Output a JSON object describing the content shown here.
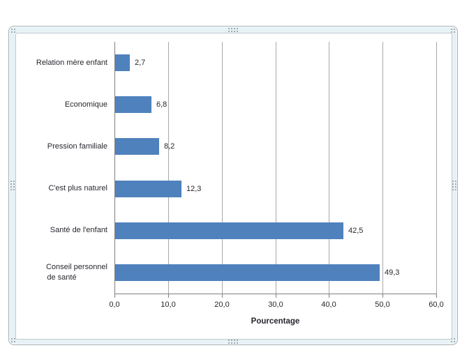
{
  "chart_data": {
    "type": "bar",
    "orientation": "horizontal",
    "title": "",
    "categories": [
      "Relation mère enfant",
      "Economique",
      "Pression familiale",
      "C'est plus naturel",
      "Santé de l'enfant",
      "Conseil personnel de santé"
    ],
    "categories_lines": [
      [
        "Relation mère enfant"
      ],
      [
        "Economique"
      ],
      [
        "Pression familiale"
      ],
      [
        "C'est plus naturel"
      ],
      [
        "Santé de l'enfant"
      ],
      [
        "Conseil personnel",
        "de santé"
      ]
    ],
    "values": [
      2.7,
      6.8,
      8.2,
      12.3,
      42.5,
      49.3
    ],
    "data_labels": [
      "2,7",
      "6,8",
      "8,2",
      "12,3",
      "42,5",
      "49,3"
    ],
    "xlabel": "Pourcentage",
    "ylabel": "",
    "xlim": [
      0,
      60
    ],
    "xticks": [
      0,
      10,
      20,
      30,
      40,
      50,
      60
    ],
    "xtick_labels": [
      "0,0",
      "10,0",
      "20,0",
      "30,0",
      "40,0",
      "50,0",
      "60,0"
    ],
    "grid": true,
    "legend": false,
    "bar_color": "#4F81BD",
    "gridline_color": "#A8A8A8",
    "axis_color": "#7F7F7F",
    "text_color": "#27272E"
  },
  "frame": {
    "fill_color": "#E7F2F7",
    "line_color": "#A9B0B5",
    "handle_color": "#8B9399"
  }
}
